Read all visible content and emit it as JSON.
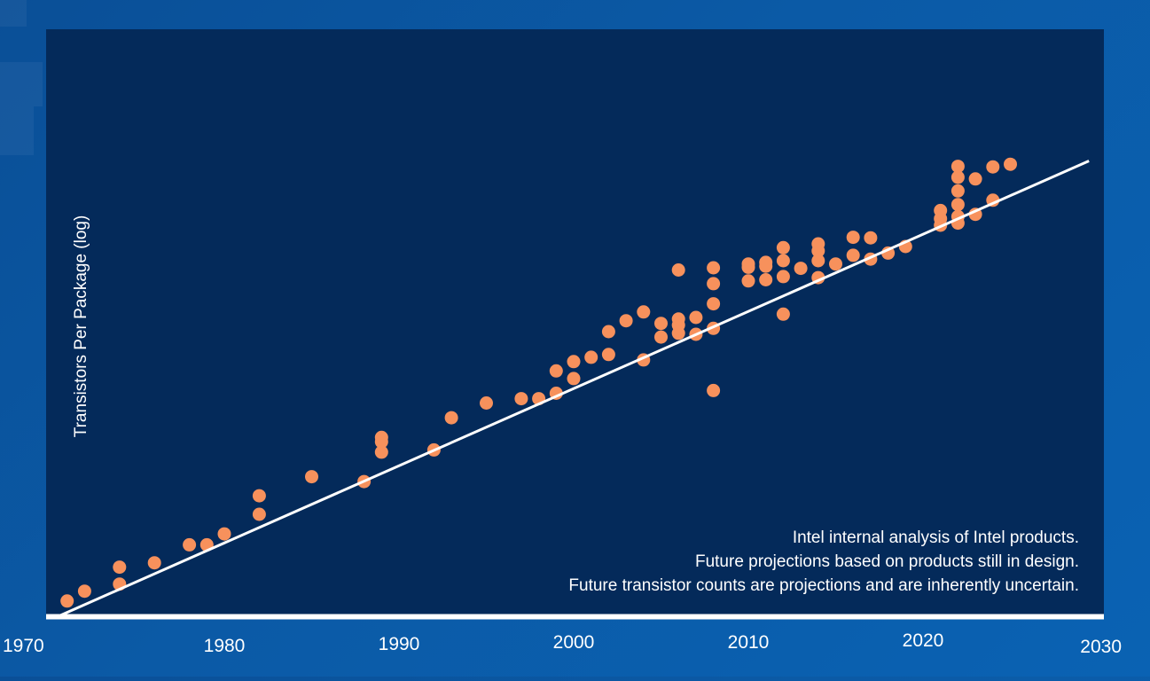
{
  "chart_data": {
    "type": "scatter",
    "title": "",
    "xlabel": "",
    "ylabel": "Transistors Per Package (log)",
    "xlim": [
      1970,
      2030
    ],
    "x_ticks": [
      "1970",
      "1980",
      "1990",
      "2000",
      "2010",
      "2020",
      "2030"
    ],
    "y_scale": "log",
    "y_range_relative": [
      0,
      100
    ],
    "grid": false,
    "legend": "none",
    "colors": {
      "points": "#f7915c",
      "trend": "#ffffff",
      "plot_bg": "#042a5a",
      "axis": "#ffffff"
    },
    "trend_line": {
      "x": [
        1970.5,
        2029.5
      ],
      "y": [
        0,
        83.5
      ]
    },
    "annotations": [
      "Intel internal analysis of Intel products.",
      "Future projections based on products still in design.",
      "Future transistor counts are projections and are inherently uncertain."
    ],
    "series": [
      {
        "x": [
          1971,
          1972,
          1974,
          1974,
          1976,
          1978,
          1979,
          1980,
          1982,
          1982,
          1985,
          1988,
          1989,
          1989,
          1989,
          1992,
          1993,
          1995,
          1997,
          1998,
          1999,
          1999,
          2000,
          2000,
          2001,
          2002,
          2002,
          2003,
          2004,
          2004,
          2005,
          2005,
          2006,
          2006,
          2006,
          2006,
          2007,
          2007,
          2008,
          2008,
          2008,
          2008,
          2008,
          2010,
          2010,
          2010,
          2011,
          2011,
          2011,
          2012,
          2012,
          2012,
          2012,
          2013,
          2014,
          2014,
          2014,
          2014,
          2015,
          2016,
          2016,
          2017,
          2017,
          2018,
          2019,
          2021,
          2021,
          2021,
          2022,
          2022,
          2022,
          2022,
          2022,
          2022,
          2023,
          2023,
          2024,
          2024,
          2025
        ],
        "y": [
          2.8,
          4.6,
          5.9,
          9.0,
          9.8,
          13.1,
          13.1,
          15.1,
          18.7,
          22.1,
          25.6,
          24.7,
          30.1,
          32.0,
          32.8,
          30.5,
          36.4,
          39.1,
          39.9,
          39.9,
          40.9,
          45.0,
          43.6,
          46.7,
          47.5,
          48.0,
          52.2,
          54.2,
          47.0,
          55.8,
          51.2,
          53.7,
          51.9,
          53.4,
          54.5,
          63.5,
          51.7,
          54.8,
          41.4,
          52.8,
          57.3,
          61.0,
          63.9,
          61.5,
          64.0,
          64.6,
          61.7,
          64.2,
          64.9,
          55.4,
          62.3,
          65.2,
          67.6,
          63.8,
          62.1,
          65.2,
          67.0,
          68.3,
          64.6,
          66.2,
          69.5,
          65.5,
          69.4,
          66.6,
          67.8,
          71.7,
          72.9,
          74.4,
          72.1,
          73.3,
          75.5,
          78.0,
          80.5,
          82.5,
          73.7,
          80.2,
          76.3,
          82.4,
          82.9
        ]
      }
    ]
  }
}
